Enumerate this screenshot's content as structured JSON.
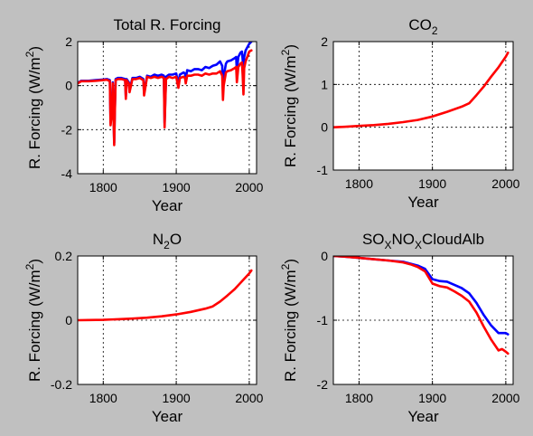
{
  "chart_data": [
    {
      "type": "line",
      "title_parts": [
        {
          "text": "Total R. Forcing"
        }
      ],
      "xlabel": "Year",
      "ylabel_parts": [
        {
          "text": "R. Forcing (W/m"
        },
        {
          "text": "2",
          "sup": true
        },
        {
          "text": ")"
        }
      ],
      "xlim": [
        1765,
        2010
      ],
      "ylim": [
        -4,
        2
      ],
      "xticks": [
        1800,
        1900,
        2000
      ],
      "yticks": [
        -4,
        -2,
        0,
        2
      ],
      "grid": true,
      "series": [
        {
          "color": "#0000ff",
          "x": [
            1765,
            1770,
            1780,
            1790,
            1800,
            1805,
            1809,
            1810,
            1812,
            1813,
            1815,
            1816,
            1817,
            1820,
            1825,
            1830,
            1831,
            1832,
            1835,
            1836,
            1840,
            1845,
            1850,
            1855,
            1856,
            1860,
            1865,
            1870,
            1875,
            1880,
            1883,
            1884,
            1885,
            1886,
            1888,
            1890,
            1895,
            1900,
            1902,
            1903,
            1905,
            1910,
            1912,
            1913,
            1915,
            1920,
            1925,
            1930,
            1935,
            1940,
            1945,
            1950,
            1955,
            1960,
            1963,
            1964,
            1965,
            1968,
            1970,
            1975,
            1980,
            1982,
            1983,
            1985,
            1988,
            1990,
            1991,
            1992,
            1993,
            1995,
            2000,
            2003
          ],
          "y": [
            0.12,
            0.22,
            0.22,
            0.25,
            0.28,
            0.3,
            0.25,
            -1.7,
            -1.1,
            0.15,
            -2.6,
            -1.0,
            0.3,
            0.35,
            0.35,
            0.3,
            -0.5,
            0.3,
            0.15,
            -0.2,
            0.35,
            0.35,
            0.4,
            0.3,
            -0.35,
            0.45,
            0.4,
            0.5,
            0.45,
            0.5,
            0.45,
            -1.7,
            -0.6,
            0.4,
            0.45,
            0.5,
            0.5,
            0.55,
            0.2,
            0.1,
            0.5,
            0.6,
            0.55,
            0.3,
            0.7,
            0.65,
            0.75,
            0.75,
            0.7,
            0.85,
            0.8,
            0.9,
            0.95,
            1.1,
            0.9,
            -0.2,
            0.4,
            1.0,
            1.1,
            1.15,
            1.25,
            1.3,
            0.65,
            1.3,
            1.5,
            1.55,
            1.2,
            0.6,
            1.3,
            1.6,
            1.9,
            2.0
          ]
        },
        {
          "color": "#ff0000",
          "x": [
            1765,
            1770,
            1780,
            1790,
            1800,
            1805,
            1809,
            1810,
            1812,
            1813,
            1815,
            1816,
            1817,
            1820,
            1825,
            1830,
            1831,
            1832,
            1835,
            1836,
            1840,
            1845,
            1850,
            1855,
            1856,
            1860,
            1865,
            1870,
            1875,
            1880,
            1883,
            1884,
            1885,
            1886,
            1888,
            1890,
            1895,
            1900,
            1902,
            1903,
            1905,
            1910,
            1912,
            1913,
            1915,
            1920,
            1925,
            1930,
            1935,
            1940,
            1945,
            1950,
            1955,
            1960,
            1963,
            1964,
            1965,
            1968,
            1970,
            1975,
            1980,
            1982,
            1983,
            1985,
            1988,
            1990,
            1991,
            1992,
            1993,
            1995,
            2000,
            2003
          ],
          "y": [
            0.1,
            0.2,
            0.2,
            0.22,
            0.25,
            0.27,
            0.2,
            -1.8,
            -1.2,
            0.1,
            -2.7,
            -1.1,
            0.25,
            0.3,
            0.3,
            0.25,
            -0.6,
            0.25,
            0.1,
            -0.3,
            0.3,
            0.3,
            0.35,
            0.25,
            -0.45,
            0.4,
            0.35,
            0.4,
            0.35,
            0.4,
            0.35,
            -1.9,
            -0.7,
            0.3,
            0.35,
            0.4,
            0.35,
            0.4,
            0.05,
            -0.1,
            0.35,
            0.4,
            0.35,
            0.1,
            0.45,
            0.45,
            0.5,
            0.5,
            0.45,
            0.55,
            0.5,
            0.55,
            0.55,
            0.65,
            0.45,
            -0.65,
            0.0,
            0.6,
            0.65,
            0.7,
            0.8,
            0.85,
            0.15,
            0.85,
            1.0,
            1.05,
            0.5,
            -0.4,
            0.8,
            1.1,
            1.55,
            1.6
          ]
        }
      ]
    },
    {
      "type": "line",
      "title_parts": [
        {
          "text": "CO"
        },
        {
          "text": "2",
          "sub": true
        }
      ],
      "xlabel": "Year",
      "ylabel_parts": [
        {
          "text": "R. Forcing (W/m"
        },
        {
          "text": "2",
          "sup": true
        },
        {
          "text": ")"
        }
      ],
      "xlim": [
        1765,
        2010
      ],
      "ylim": [
        -1,
        2
      ],
      "xticks": [
        1800,
        1900,
        2000
      ],
      "yticks": [
        -1,
        0,
        1,
        2
      ],
      "grid": true,
      "series": [
        {
          "color": "#ff0000",
          "x": [
            1765,
            1780,
            1800,
            1820,
            1840,
            1860,
            1880,
            1900,
            1920,
            1940,
            1950,
            1960,
            1970,
            1980,
            1990,
            2000,
            2003
          ],
          "y": [
            0.0,
            0.01,
            0.03,
            0.05,
            0.08,
            0.12,
            0.17,
            0.25,
            0.36,
            0.48,
            0.56,
            0.75,
            0.95,
            1.18,
            1.4,
            1.65,
            1.74
          ]
        }
      ]
    },
    {
      "type": "line",
      "title_parts": [
        {
          "text": "N"
        },
        {
          "text": "2",
          "sub": true
        },
        {
          "text": "O"
        }
      ],
      "xlabel": "Year",
      "ylabel_parts": [
        {
          "text": "R. Forcing (W/m"
        },
        {
          "text": "2",
          "sup": true
        },
        {
          "text": ")"
        }
      ],
      "xlim": [
        1765,
        2010
      ],
      "ylim": [
        -0.2,
        0.2
      ],
      "xticks": [
        1800,
        1900,
        2000
      ],
      "yticks": [
        -0.2,
        0,
        0.2
      ],
      "grid": true,
      "series": [
        {
          "color": "#ff0000",
          "x": [
            1765,
            1780,
            1800,
            1820,
            1840,
            1860,
            1880,
            1900,
            1920,
            1940,
            1950,
            1960,
            1970,
            1980,
            1990,
            2000,
            2003
          ],
          "y": [
            0.0,
            0.0005,
            0.001,
            0.003,
            0.005,
            0.008,
            0.012,
            0.018,
            0.026,
            0.036,
            0.043,
            0.058,
            0.077,
            0.097,
            0.121,
            0.146,
            0.155
          ]
        }
      ]
    },
    {
      "type": "line",
      "title_parts": [
        {
          "text": "SO"
        },
        {
          "text": "X",
          "sub": true
        },
        {
          "text": "NO"
        },
        {
          "text": "X",
          "sub": true
        },
        {
          "text": "CloudAlb"
        }
      ],
      "xlabel": "Year",
      "ylabel_parts": [
        {
          "text": "R. Forcing (W/m"
        },
        {
          "text": "2",
          "sup": true
        },
        {
          "text": ")"
        }
      ],
      "xlim": [
        1765,
        2010
      ],
      "ylim": [
        -2,
        0
      ],
      "xticks": [
        1800,
        1900,
        2000
      ],
      "yticks": [
        -2,
        -1,
        0
      ],
      "grid": true,
      "series": [
        {
          "color": "#0000ff",
          "x": [
            1765,
            1780,
            1800,
            1820,
            1840,
            1860,
            1870,
            1880,
            1890,
            1900,
            1910,
            1920,
            1930,
            1940,
            1950,
            1960,
            1970,
            1980,
            1990,
            2000,
            2003
          ],
          "y": [
            0.0,
            -0.01,
            -0.03,
            -0.05,
            -0.07,
            -0.09,
            -0.12,
            -0.15,
            -0.2,
            -0.36,
            -0.39,
            -0.4,
            -0.45,
            -0.5,
            -0.58,
            -0.73,
            -0.92,
            -1.08,
            -1.2,
            -1.2,
            -1.22
          ]
        },
        {
          "color": "#ff0000",
          "x": [
            1765,
            1780,
            1800,
            1820,
            1840,
            1860,
            1870,
            1880,
            1890,
            1900,
            1910,
            1920,
            1930,
            1940,
            1950,
            1960,
            1970,
            1980,
            1990,
            1995,
            2000,
            2003
          ],
          "y": [
            0.0,
            -0.01,
            -0.03,
            -0.05,
            -0.07,
            -0.1,
            -0.13,
            -0.17,
            -0.24,
            -0.43,
            -0.47,
            -0.49,
            -0.55,
            -0.62,
            -0.71,
            -0.88,
            -1.1,
            -1.3,
            -1.47,
            -1.45,
            -1.49,
            -1.52
          ]
        }
      ]
    }
  ]
}
